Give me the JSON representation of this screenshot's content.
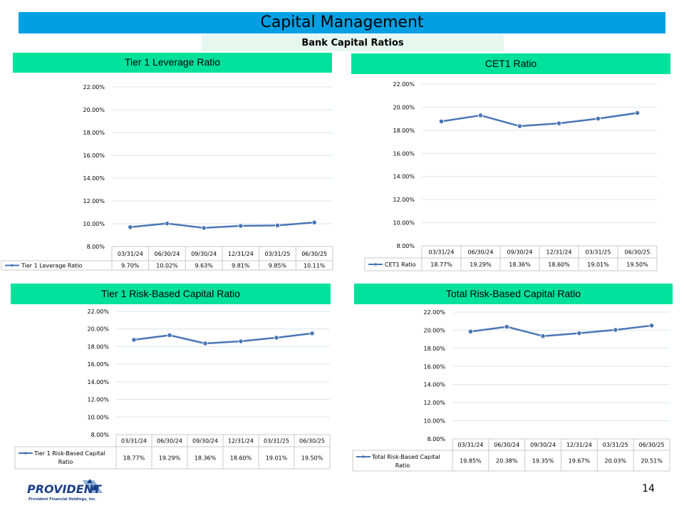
{
  "header": {
    "title": "Capital Management",
    "subtitle": "Bank Capital Ratios"
  },
  "colors": {
    "title_bar": "#00a0e3",
    "chart_header": "#00e19b",
    "series_line": "#4a76b5",
    "grid": "#d9e4ec"
  },
  "footer": {
    "page_number": "14",
    "logo_name": "PROVIDENT",
    "logo_tagline": "Provident Financial Holdings, Inc."
  },
  "chart_data": [
    {
      "type": "line",
      "title": "Tier 1 Leverage Ratio",
      "categories": [
        "03/31/24",
        "06/30/24",
        "09/30/24",
        "12/31/24",
        "03/31/25",
        "06/30/25"
      ],
      "series": [
        {
          "name": "Tier 1 Leverage Ratio",
          "values": [
            9.7,
            10.02,
            9.63,
            9.81,
            9.85,
            10.11
          ],
          "labels": [
            "9.70%",
            "10.02%",
            "9.63%",
            "9.81%",
            "9.85%",
            "10.11%"
          ]
        }
      ],
      "ylim": [
        8,
        22
      ],
      "yticks": [
        "8.00%",
        "10.00%",
        "12.00%",
        "14.00%",
        "16.00%",
        "18.00%",
        "20.00%",
        "22.00%"
      ],
      "legend": "data-table"
    },
    {
      "type": "line",
      "title": "CET1 Ratio",
      "categories": [
        "03/31/24",
        "06/30/24",
        "09/30/24",
        "12/31/24",
        "03/31/25",
        "06/30/25"
      ],
      "series": [
        {
          "name": "CET1 Ratio",
          "values": [
            18.77,
            19.29,
            18.36,
            18.6,
            19.01,
            19.5
          ],
          "labels": [
            "18.77%",
            "19.29%",
            "18.36%",
            "18.60%",
            "19.01%",
            "19.50%"
          ]
        }
      ],
      "ylim": [
        8,
        22
      ],
      "yticks": [
        "8.00%",
        "10.00%",
        "12.00%",
        "14.00%",
        "16.00%",
        "18.00%",
        "20.00%",
        "22.00%"
      ],
      "legend": "data-table"
    },
    {
      "type": "line",
      "title": "Tier 1 Risk-Based Capital Ratio",
      "categories": [
        "03/31/24",
        "06/30/24",
        "09/30/24",
        "12/31/24",
        "03/31/25",
        "06/30/25"
      ],
      "series": [
        {
          "name": "Tier 1 Risk-Based Capital Ratio",
          "values": [
            18.77,
            19.29,
            18.36,
            18.6,
            19.01,
            19.5
          ],
          "labels": [
            "18.77%",
            "19.29%",
            "18.36%",
            "18.60%",
            "19.01%",
            "19.50%"
          ]
        }
      ],
      "ylim": [
        8,
        22
      ],
      "yticks": [
        "8.00%",
        "10.00%",
        "12.00%",
        "14.00%",
        "16.00%",
        "18.00%",
        "20.00%",
        "22.00%"
      ],
      "legend": "data-table"
    },
    {
      "type": "line",
      "title": "Total Risk-Based Capital Ratio",
      "categories": [
        "03/31/24",
        "06/30/24",
        "09/30/24",
        "12/31/24",
        "03/31/25",
        "06/30/25"
      ],
      "series": [
        {
          "name": "Total Risk-Based Capital Ratio",
          "values": [
            19.85,
            20.38,
            19.35,
            19.67,
            20.03,
            20.51
          ],
          "labels": [
            "19.85%",
            "20.38%",
            "19.35%",
            "19.67%",
            "20.03%",
            "20.51%"
          ]
        }
      ],
      "ylim": [
        8,
        22
      ],
      "yticks": [
        "8.00%",
        "10.00%",
        "12.00%",
        "14.00%",
        "16.00%",
        "18.00%",
        "20.00%",
        "22.00%"
      ],
      "legend": "data-table"
    }
  ]
}
